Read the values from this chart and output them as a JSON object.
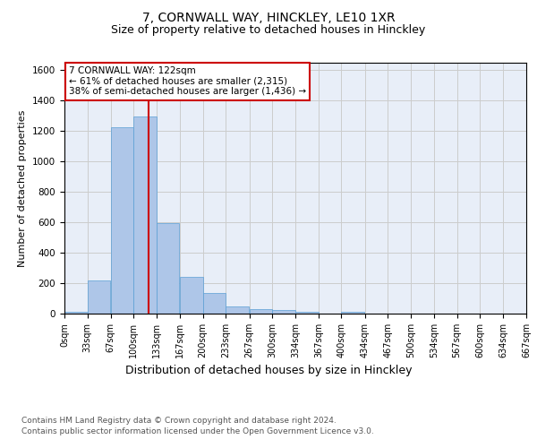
{
  "title_line1": "7, CORNWALL WAY, HINCKLEY, LE10 1XR",
  "title_line2": "Size of property relative to detached houses in Hinckley",
  "xlabel": "Distribution of detached houses by size in Hinckley",
  "ylabel": "Number of detached properties",
  "bar_values": [
    10,
    220,
    1225,
    1295,
    595,
    240,
    135,
    50,
    30,
    25,
    10,
    0,
    12,
    0,
    0,
    0,
    0,
    0,
    0,
    0
  ],
  "bin_edges": [
    0,
    33,
    67,
    100,
    133,
    167,
    200,
    233,
    267,
    300,
    334,
    367,
    400,
    434,
    467,
    500,
    534,
    567,
    600,
    634,
    667
  ],
  "tick_labels": [
    "0sqm",
    "33sqm",
    "67sqm",
    "100sqm",
    "133sqm",
    "167sqm",
    "200sqm",
    "233sqm",
    "267sqm",
    "300sqm",
    "334sqm",
    "367sqm",
    "400sqm",
    "434sqm",
    "467sqm",
    "500sqm",
    "534sqm",
    "567sqm",
    "600sqm",
    "634sqm",
    "667sqm"
  ],
  "bar_color": "#aec6e8",
  "bar_edge_color": "#5a9fd4",
  "property_line_x": 122,
  "annotation_line1": "7 CORNWALL WAY: 122sqm",
  "annotation_line2": "← 61% of detached houses are smaller (2,315)",
  "annotation_line3": "38% of semi-detached houses are larger (1,436) →",
  "annotation_box_color": "#cc0000",
  "ylim": [
    0,
    1650
  ],
  "yticks": [
    0,
    200,
    400,
    600,
    800,
    1000,
    1200,
    1400,
    1600
  ],
  "grid_color": "#cccccc",
  "background_color": "#e8eef8",
  "footer_line1": "Contains HM Land Registry data © Crown copyright and database right 2024.",
  "footer_line2": "Contains public sector information licensed under the Open Government Licence v3.0.",
  "title_fontsize": 10,
  "subtitle_fontsize": 9,
  "ylabel_fontsize": 8,
  "xlabel_fontsize": 9,
  "tick_fontsize": 7,
  "annotation_fontsize": 7.5,
  "footer_fontsize": 6.5
}
